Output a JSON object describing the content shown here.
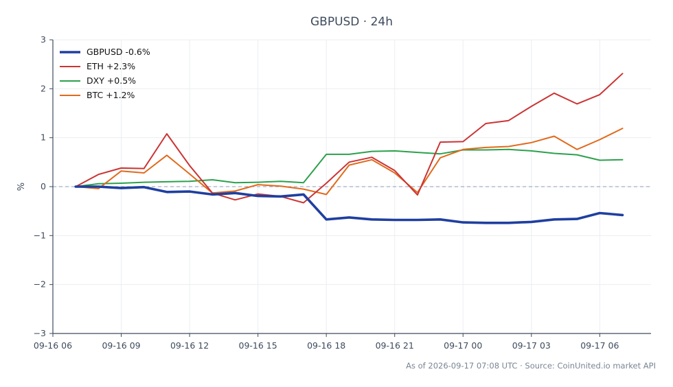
{
  "chart_data": {
    "type": "line",
    "title": "GBPUSD · 24h",
    "xlabel": "",
    "ylabel": "%",
    "ylim": [
      -3,
      3
    ],
    "grid": true,
    "legend_position": "top-left",
    "x_domain": [
      "2026-09-16 06:00",
      "2026-09-17 08:15"
    ],
    "x_ticks": [
      {
        "t": "2026-09-16 06:00",
        "label": "09-16 06"
      },
      {
        "t": "2026-09-16 09:00",
        "label": "09-16 09"
      },
      {
        "t": "2026-09-16 12:00",
        "label": "09-16 12"
      },
      {
        "t": "2026-09-16 15:00",
        "label": "09-16 15"
      },
      {
        "t": "2026-09-16 18:00",
        "label": "09-16 18"
      },
      {
        "t": "2026-09-16 21:00",
        "label": "09-16 21"
      },
      {
        "t": "2026-09-17 00:00",
        "label": "09-17 00"
      },
      {
        "t": "2026-09-17 03:00",
        "label": "09-17 03"
      },
      {
        "t": "2026-09-17 06:00",
        "label": "09-17 06"
      }
    ],
    "y_ticks": [
      {
        "v": 3,
        "label": "3"
      },
      {
        "v": 2,
        "label": "2"
      },
      {
        "v": 1,
        "label": "1"
      },
      {
        "v": 0,
        "label": "0"
      },
      {
        "v": -1,
        "label": "−1"
      },
      {
        "v": -2,
        "label": "−2"
      },
      {
        "v": -3,
        "label": "−3"
      }
    ],
    "x": [
      "2026-09-16 07:00",
      "2026-09-16 08:00",
      "2026-09-16 09:00",
      "2026-09-16 10:00",
      "2026-09-16 11:00",
      "2026-09-16 12:00",
      "2026-09-16 13:00",
      "2026-09-16 14:00",
      "2026-09-16 15:00",
      "2026-09-16 16:00",
      "2026-09-16 17:00",
      "2026-09-16 18:00",
      "2026-09-16 19:00",
      "2026-09-16 20:00",
      "2026-09-16 21:00",
      "2026-09-16 22:00",
      "2026-09-16 23:00",
      "2026-09-17 00:00",
      "2026-09-17 01:00",
      "2026-09-17 02:00",
      "2026-09-17 03:00",
      "2026-09-17 04:00",
      "2026-09-17 05:00",
      "2026-09-17 06:00",
      "2026-09-17 07:00"
    ],
    "series": [
      {
        "name": "GBPUSD -0.6%",
        "color": "#1f3fa0",
        "width": 3.6,
        "values": [
          0.0,
          0.0,
          -0.03,
          -0.01,
          -0.11,
          -0.1,
          -0.16,
          -0.13,
          -0.19,
          -0.2,
          -0.16,
          -0.67,
          -0.63,
          -0.67,
          -0.68,
          -0.68,
          -0.67,
          -0.73,
          -0.74,
          -0.74,
          -0.72,
          -0.67,
          -0.66,
          -0.54,
          -0.58
        ]
      },
      {
        "name": "ETH +2.3%",
        "color": "#cc3333",
        "width": 2,
        "values": [
          0.0,
          0.25,
          0.38,
          0.37,
          1.08,
          0.43,
          -0.13,
          -0.27,
          -0.15,
          -0.2,
          -0.33,
          0.07,
          0.5,
          0.6,
          0.33,
          -0.17,
          0.91,
          0.92,
          1.29,
          1.35,
          1.64,
          1.91,
          1.69,
          1.88,
          2.31
        ]
      },
      {
        "name": "DXY +0.5%",
        "color": "#2ca04c",
        "width": 2,
        "values": [
          0.0,
          0.06,
          0.07,
          0.09,
          0.1,
          0.11,
          0.14,
          0.08,
          0.09,
          0.11,
          0.08,
          0.66,
          0.66,
          0.72,
          0.73,
          0.7,
          0.67,
          0.75,
          0.75,
          0.76,
          0.73,
          0.68,
          0.65,
          0.54,
          0.55
        ]
      },
      {
        "name": "BTC +1.2%",
        "color": "#e06a1b",
        "width": 2,
        "values": [
          0.0,
          -0.04,
          0.32,
          0.28,
          0.64,
          0.26,
          -0.13,
          -0.09,
          0.04,
          0.01,
          -0.05,
          -0.16,
          0.44,
          0.55,
          0.28,
          -0.12,
          0.59,
          0.76,
          0.8,
          0.82,
          0.9,
          1.03,
          0.76,
          0.96,
          1.19
        ]
      }
    ]
  },
  "footer": "As of 2026-09-17 07:08 UTC · Source: CoinUnited.io market API"
}
